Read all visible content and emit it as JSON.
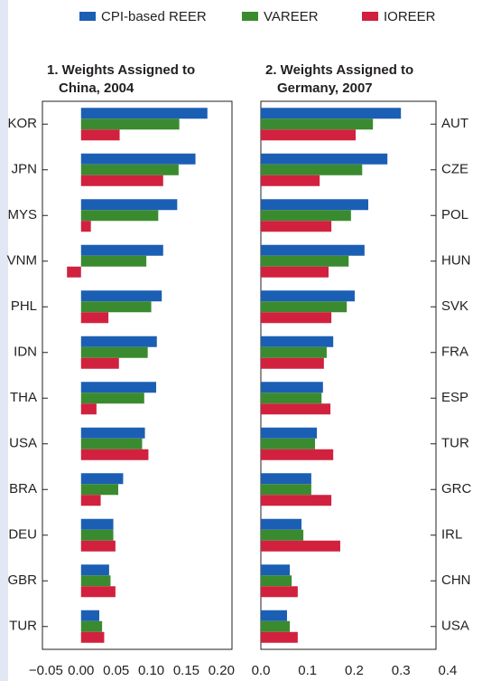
{
  "chart_data": [
    {
      "type": "bar",
      "orientation": "horizontal",
      "title": "1. Weights Assigned to China, 2004",
      "categories": [
        "KOR",
        "JPN",
        "MYS",
        "VNM",
        "PHL",
        "IDN",
        "THA",
        "USA",
        "BRA",
        "DEU",
        "GBR",
        "TUR"
      ],
      "series": [
        {
          "name": "CPI-based REER",
          "color": "#1b5fb4",
          "values": [
            0.18,
            0.163,
            0.137,
            0.117,
            0.115,
            0.108,
            0.107,
            0.091,
            0.06,
            0.046,
            0.04,
            0.026
          ]
        },
        {
          "name": "VAREER",
          "color": "#3a8b2f",
          "values": [
            0.14,
            0.139,
            0.11,
            0.093,
            0.1,
            0.095,
            0.09,
            0.087,
            0.053,
            0.046,
            0.042,
            0.03
          ]
        },
        {
          "name": "IOREER",
          "color": "#d1213f",
          "values": [
            0.055,
            0.117,
            0.014,
            -0.02,
            0.039,
            0.054,
            0.022,
            0.096,
            0.028,
            0.049,
            0.049,
            0.033
          ]
        }
      ],
      "xlim": [
        -0.055,
        0.215
      ],
      "xticks": [
        {
          "value": -0.05,
          "label": "−0.05"
        },
        {
          "value": 0,
          "label": "0.00"
        },
        {
          "value": 0.05,
          "label": "0.05"
        },
        {
          "value": 0.1,
          "label": "0.10"
        },
        {
          "value": 0.15,
          "label": "0.15"
        },
        {
          "value": 0.2,
          "label": "0.20"
        }
      ],
      "grid": false
    },
    {
      "type": "bar",
      "orientation": "horizontal",
      "title": "2. Weights Assigned to Germany, 2007",
      "categories": [
        "AUT",
        "CZE",
        "POL",
        "HUN",
        "SVK",
        "FRA",
        "ESP",
        "TUR",
        "GRC",
        "IRL",
        "CHN",
        "USA"
      ],
      "series": [
        {
          "name": "CPI-based REER",
          "color": "#1b5fb4",
          "values": [
            0.3,
            0.271,
            0.23,
            0.222,
            0.201,
            0.155,
            0.133,
            0.12,
            0.108,
            0.087,
            0.062,
            0.056
          ]
        },
        {
          "name": "VAREER",
          "color": "#3a8b2f",
          "values": [
            0.24,
            0.217,
            0.193,
            0.188,
            0.184,
            0.141,
            0.13,
            0.116,
            0.108,
            0.091,
            0.066,
            0.062
          ]
        },
        {
          "name": "IOREER",
          "color": "#d1213f",
          "values": [
            0.203,
            0.126,
            0.151,
            0.145,
            0.151,
            0.135,
            0.149,
            0.155,
            0.151,
            0.17,
            0.079,
            0.079
          ]
        }
      ],
      "xlim": [
        0,
        0.375
      ],
      "xticks": [
        {
          "value": 0,
          "label": "0.0"
        },
        0.1,
        0.2,
        0.3,
        0.4
      ],
      "grid": false
    }
  ]
}
